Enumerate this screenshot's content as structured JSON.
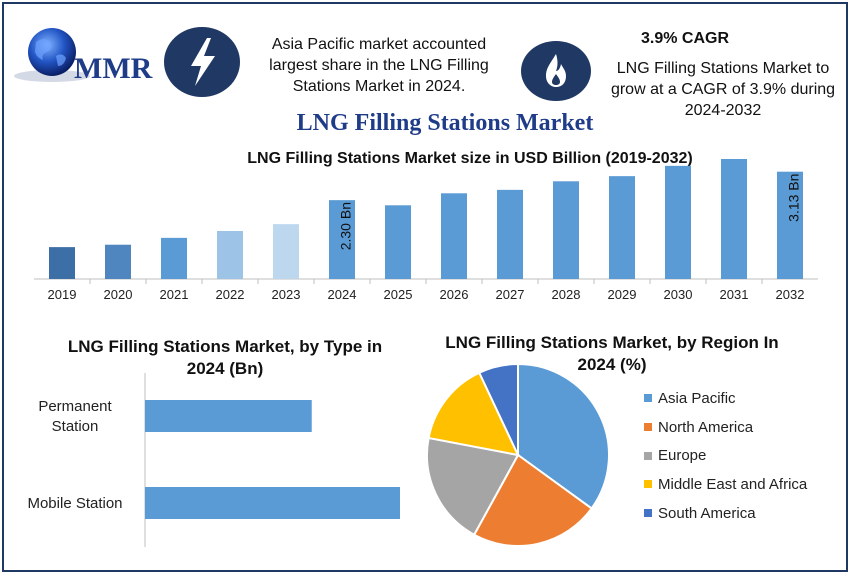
{
  "header": {
    "logo_text": "MMR",
    "left_blurb": "Asia Pacific market accounted largest share in the LNG Filling Stations Market in 2024.",
    "cagr_heading": "3.9% CAGR",
    "right_blurb": "LNG Filling Stations Market to grow at a CAGR of 3.9% during 2024-2032",
    "main_title": "LNG Filling Stations Market"
  },
  "icons": {
    "left": "lightning-bolt-icon",
    "right": "flame-icon",
    "icon_bg": "#1f3864"
  },
  "chart_data": [
    {
      "type": "bar",
      "title": "LNG Filling Stations Market size in USD Billion (2019-2032)",
      "categories": [
        "2019",
        "2020",
        "2021",
        "2022",
        "2023",
        "2024",
        "2025",
        "2026",
        "2027",
        "2028",
        "2029",
        "2030",
        "2031",
        "2032"
      ],
      "values": [
        0.93,
        1.0,
        1.2,
        1.4,
        1.6,
        2.3,
        2.15,
        2.5,
        2.6,
        2.85,
        3.0,
        3.3,
        3.5,
        3.13
      ],
      "colors": [
        "#3c6fa6",
        "#4f86c0",
        "#5b9bd5",
        "#9dc3e6",
        "#bdd7ee",
        "#5b9bd5",
        "#5b9bd5",
        "#5b9bd5",
        "#5b9bd5",
        "#5b9bd5",
        "#5b9bd5",
        "#5b9bd5",
        "#5b9bd5",
        "#5b9bd5"
      ],
      "data_labels": {
        "2024": "2.30 Bn",
        "2032": "3.13 Bn"
      },
      "grid": false
    },
    {
      "type": "bar",
      "orientation": "horizontal",
      "title": "LNG Filling Stations Market, by Type in 2024 (Bn)",
      "categories": [
        "Permanent Station",
        "Mobile Station"
      ],
      "category_lines": [
        [
          "Permanent",
          "Station"
        ],
        [
          "Mobile Station"
        ]
      ],
      "values": [
        0.85,
        1.3
      ],
      "color": "#5b9bd5"
    },
    {
      "type": "pie",
      "title": "LNG Filling Stations Market, by Region In 2024 (%)",
      "categories": [
        "Asia Pacific",
        "North America",
        "Europe",
        "Middle East and Africa",
        "South America"
      ],
      "values": [
        35,
        23,
        20,
        15,
        7
      ],
      "colors": [
        "#5b9bd5",
        "#ed7d31",
        "#a5a5a5",
        "#ffc000",
        "#4472c4"
      ],
      "legend_position": "right"
    }
  ]
}
